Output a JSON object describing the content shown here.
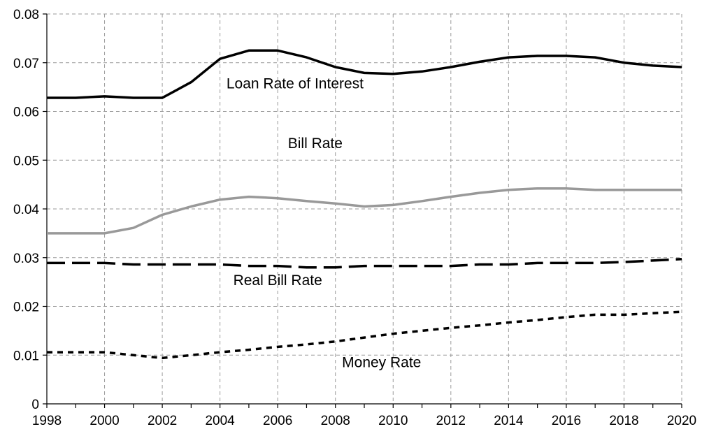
{
  "chart_data": {
    "type": "line",
    "title": "",
    "xlabel": "",
    "ylabel": "",
    "xlim": [
      1998,
      2020
    ],
    "ylim": [
      0,
      0.08
    ],
    "x_ticks": [
      "1998",
      "2000",
      "2002",
      "2004",
      "2006",
      "2008",
      "2010",
      "2012",
      "2014",
      "2016",
      "2018",
      "2020"
    ],
    "y_ticks": [
      "0",
      "0.01",
      "0.02",
      "0.03",
      "0.04",
      "0.05",
      "0.06",
      "0.07",
      "0.08"
    ],
    "grid": true,
    "x": [
      1998,
      1999,
      2000,
      2001,
      2002,
      2003,
      2004,
      2005,
      2006,
      2007,
      2008,
      2009,
      2010,
      2011,
      2012,
      2013,
      2014,
      2015,
      2016,
      2017,
      2018,
      2019,
      2020
    ],
    "series": [
      {
        "name": "Loan Rate of Interest",
        "color": "#000000",
        "style": "solid",
        "values": [
          0.0628,
          0.0628,
          0.0631,
          0.0628,
          0.0628,
          0.066,
          0.0708,
          0.0725,
          0.0725,
          0.0711,
          0.0691,
          0.0679,
          0.0677,
          0.0682,
          0.0691,
          0.0702,
          0.0711,
          0.0714,
          0.0714,
          0.0711,
          0.07,
          0.0694,
          0.0691
        ]
      },
      {
        "name": "Bill Rate",
        "color": "#999999",
        "style": "solid",
        "values": [
          0.035,
          0.035,
          0.035,
          0.0361,
          0.0388,
          0.0405,
          0.0419,
          0.0425,
          0.0422,
          0.0416,
          0.0411,
          0.0405,
          0.0408,
          0.0416,
          0.0425,
          0.0433,
          0.0439,
          0.0442,
          0.0442,
          0.0439,
          0.0439,
          0.0439,
          0.0439
        ]
      },
      {
        "name": "Real Bill Rate",
        "color": "#000000",
        "style": "long-dash",
        "values": [
          0.0289,
          0.0289,
          0.0289,
          0.0286,
          0.0286,
          0.0286,
          0.0286,
          0.0283,
          0.0283,
          0.028,
          0.028,
          0.0283,
          0.0283,
          0.0283,
          0.0283,
          0.0286,
          0.0286,
          0.0289,
          0.0289,
          0.0289,
          0.0291,
          0.0294,
          0.0297
        ]
      },
      {
        "name": "Money Rate",
        "color": "#000000",
        "style": "short-dash",
        "values": [
          0.0106,
          0.0106,
          0.0106,
          0.01,
          0.0094,
          0.01,
          0.0106,
          0.0111,
          0.0117,
          0.0122,
          0.0128,
          0.0136,
          0.0144,
          0.015,
          0.0156,
          0.0161,
          0.0167,
          0.0172,
          0.0178,
          0.0183,
          0.0183,
          0.0186,
          0.0189
        ]
      }
    ],
    "annotations": [
      {
        "text": "Loan Rate of Interest",
        "x": 2006.6,
        "y": 0.0647,
        "series": 0
      },
      {
        "text": "Bill Rate",
        "x": 2007.3,
        "y": 0.0525,
        "series": 1
      },
      {
        "text": "Real Bill Rate",
        "x": 2006.0,
        "y": 0.0244,
        "series": 2
      },
      {
        "text": "Money Rate",
        "x": 2009.6,
        "y": 0.0075,
        "series": 3
      }
    ]
  }
}
